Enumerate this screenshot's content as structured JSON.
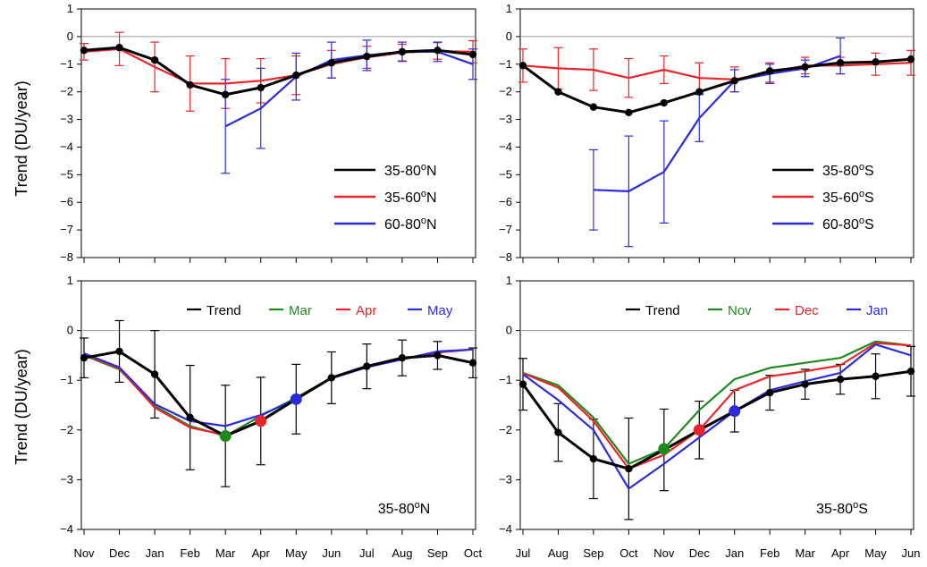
{
  "months_nh": [
    "Nov",
    "Dec",
    "Jan",
    "Feb",
    "Mar",
    "Apr",
    "May",
    "Jun",
    "Jul",
    "Aug",
    "Sep",
    "Oct"
  ],
  "months_sh": [
    "Jul",
    "Aug",
    "Sep",
    "Oct",
    "Nov",
    "Dec",
    "Jan",
    "Feb",
    "Mar",
    "Apr",
    "May",
    "Jun"
  ],
  "ylabel": "Trend  (DU/year)",
  "colors": {
    "black": "#000000",
    "red": "#e8262a",
    "blue": "#2b2bdc",
    "green": "#1e8a1e",
    "zero_line": "#999999"
  },
  "chart_data": [
    {
      "type": "line",
      "panel": "top-left",
      "categories": [
        "Nov",
        "Dec",
        "Jan",
        "Feb",
        "Mar",
        "Apr",
        "May",
        "Jun",
        "Jul",
        "Aug",
        "Sep",
        "Oct"
      ],
      "ylim": [
        -8,
        1
      ],
      "yticks": [
        1,
        0,
        -1,
        -2,
        -3,
        -4,
        -5,
        -6,
        -7,
        -8
      ],
      "legend_position": "bottom-right",
      "series": [
        {
          "name": "35-80°N",
          "color": "black",
          "markers": true,
          "values": [
            -0.5,
            -0.4,
            -0.85,
            -1.75,
            -2.1,
            -1.85,
            -1.4,
            -0.95,
            -0.72,
            -0.55,
            -0.5,
            -0.65
          ]
        },
        {
          "name": "35-60°N",
          "color": "red",
          "values": [
            -0.55,
            -0.45,
            -1.1,
            -1.7,
            -1.7,
            -1.6,
            -1.4,
            -1.0,
            -0.75,
            -0.58,
            -0.52,
            -0.55
          ],
          "errors": [
            0.3,
            0.6,
            0.9,
            1.0,
            0.9,
            0.8,
            0.7,
            0.5,
            0.4,
            0.3,
            0.3,
            0.4
          ]
        },
        {
          "name": "60-80°N",
          "start_index": 4,
          "color": "blue",
          "values": [
            null,
            null,
            null,
            null,
            -3.25,
            -2.6,
            -1.45,
            -0.85,
            -0.68,
            -0.55,
            -0.55,
            -1.0
          ],
          "errors": [
            null,
            null,
            null,
            null,
            1.7,
            1.45,
            0.85,
            0.65,
            0.55,
            0.35,
            0.35,
            0.55
          ]
        }
      ]
    },
    {
      "type": "line",
      "panel": "top-right",
      "categories": [
        "Jul",
        "Aug",
        "Sep",
        "Oct",
        "Nov",
        "Dec",
        "Jan",
        "Feb",
        "Mar",
        "Apr",
        "May",
        "Jun"
      ],
      "ylim": [
        -8,
        1
      ],
      "yticks": [
        1,
        0,
        -1,
        -2,
        -3,
        -4,
        -5,
        -6,
        -7,
        -8
      ],
      "legend_position": "bottom-right",
      "series": [
        {
          "name": "35-80°S",
          "color": "black",
          "markers": true,
          "values": [
            -1.05,
            -2.0,
            -2.55,
            -2.75,
            -2.4,
            -2.0,
            -1.6,
            -1.25,
            -1.1,
            -0.95,
            -0.92,
            -0.82
          ]
        },
        {
          "name": "35-60°S",
          "color": "red",
          "values": [
            -1.05,
            -1.15,
            -1.2,
            -1.5,
            -1.2,
            -1.5,
            -1.55,
            -1.3,
            -1.05,
            -1.05,
            -1.0,
            -0.95
          ],
          "errors": [
            0.6,
            0.75,
            0.75,
            0.7,
            0.5,
            0.55,
            0.45,
            0.35,
            0.3,
            0.3,
            0.4,
            0.45
          ]
        },
        {
          "name": "60-80°S",
          "color": "blue",
          "values": [
            null,
            null,
            -5.55,
            -5.6,
            -4.9,
            -2.95,
            -1.6,
            -1.35,
            -1.15,
            -0.7,
            null,
            null
          ],
          "errors": [
            null,
            null,
            1.45,
            2.0,
            1.85,
            0.85,
            0.4,
            0.35,
            0.3,
            0.65,
            null,
            null
          ]
        }
      ]
    },
    {
      "type": "line",
      "panel": "bottom-left",
      "categories": [
        "Nov",
        "Dec",
        "Jan",
        "Feb",
        "Mar",
        "Apr",
        "May",
        "Jun",
        "Jul",
        "Aug",
        "Sep",
        "Oct"
      ],
      "ylim": [
        -4,
        1
      ],
      "yticks": [
        1,
        0,
        -1,
        -2,
        -3,
        -4
      ],
      "annotation": "35-80°N",
      "legend_position": "top",
      "series": [
        {
          "name": "Trend",
          "color": "black",
          "markers": true,
          "values": [
            -0.55,
            -0.42,
            -0.88,
            -1.75,
            -2.12,
            -1.82,
            -1.38,
            -0.95,
            -0.72,
            -0.55,
            -0.5,
            -0.65
          ],
          "errors": [
            0.4,
            0.62,
            0.88,
            1.05,
            1.02,
            0.88,
            0.7,
            0.52,
            0.45,
            0.36,
            0.28,
            0.3
          ]
        },
        {
          "name": "Mar",
          "color": "green",
          "values": [
            -0.5,
            -0.78,
            -1.52,
            -1.92,
            -2.12,
            -1.72,
            -1.35,
            -0.95,
            -0.72,
            -0.58,
            -0.44,
            -0.38
          ]
        },
        {
          "name": "Apr",
          "color": "red",
          "values": [
            -0.48,
            -0.76,
            -1.55,
            -1.95,
            -2.1,
            -1.82,
            -1.38,
            -0.96,
            -0.72,
            -0.58,
            -0.44,
            -0.38
          ]
        },
        {
          "name": "May",
          "color": "blue",
          "values": [
            -0.46,
            -0.74,
            -1.48,
            -1.82,
            -1.92,
            -1.7,
            -1.38,
            -0.96,
            -0.74,
            -0.58,
            -0.42,
            -0.38
          ]
        }
      ],
      "highlight_points": [
        {
          "index": 4,
          "series": "Mar",
          "color": "green"
        },
        {
          "index": 5,
          "series": "Apr",
          "color": "red"
        },
        {
          "index": 6,
          "series": "May",
          "color": "blue"
        }
      ]
    },
    {
      "type": "line",
      "panel": "bottom-right",
      "categories": [
        "Jul",
        "Aug",
        "Sep",
        "Oct",
        "Nov",
        "Dec",
        "Jan",
        "Feb",
        "Mar",
        "Apr",
        "May",
        "Jun"
      ],
      "ylim": [
        -4,
        1
      ],
      "yticks": [
        1,
        0,
        -1,
        -2,
        -3,
        -4
      ],
      "annotation": "35-80°S",
      "legend_position": "top",
      "series": [
        {
          "name": "Trend",
          "color": "black",
          "markers": true,
          "values": [
            -1.08,
            -2.05,
            -2.58,
            -2.78,
            -2.4,
            -2.0,
            -1.62,
            -1.25,
            -1.08,
            -0.98,
            -0.92,
            -0.82
          ],
          "errors": [
            0.52,
            0.58,
            0.8,
            1.02,
            0.82,
            0.58,
            0.42,
            0.35,
            0.3,
            0.3,
            0.45,
            0.5
          ]
        },
        {
          "name": "Nov",
          "color": "green",
          "values": [
            -0.85,
            -1.1,
            -1.75,
            -2.68,
            -2.38,
            -1.6,
            -0.98,
            -0.75,
            -0.65,
            -0.55,
            -0.22,
            -0.3
          ]
        },
        {
          "name": "Dec",
          "color": "red",
          "values": [
            -0.86,
            -1.15,
            -1.82,
            -2.78,
            -2.5,
            -2.0,
            -1.2,
            -0.92,
            -0.82,
            -0.7,
            -0.25,
            -0.3
          ]
        },
        {
          "name": "Jan",
          "color": "blue",
          "values": [
            -0.88,
            -1.4,
            -2.0,
            -3.18,
            -2.68,
            -2.15,
            -1.62,
            -1.2,
            -1.02,
            -0.85,
            -0.28,
            -0.5
          ]
        }
      ],
      "highlight_points": [
        {
          "index": 4,
          "series": "Nov",
          "color": "green"
        },
        {
          "index": 5,
          "series": "Dec",
          "color": "red"
        },
        {
          "index": 6,
          "series": "Jan",
          "color": "blue"
        }
      ]
    }
  ]
}
